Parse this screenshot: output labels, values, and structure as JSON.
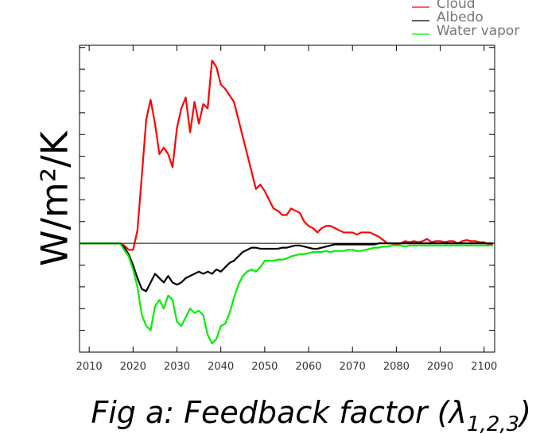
{
  "chart_data": {
    "type": "line",
    "y_label": "W/m²/K",
    "caption": "Fig a: Feedback factor (λ",
    "caption_subscript": "1,2,3",
    "caption_close": ")",
    "x": [
      2008,
      2009,
      2010,
      2011,
      2012,
      2013,
      2014,
      2015,
      2016,
      2017,
      2018,
      2019,
      2020,
      2021,
      2022,
      2023,
      2024,
      2025,
      2026,
      2027,
      2028,
      2029,
      2030,
      2031,
      2032,
      2033,
      2034,
      2035,
      2036,
      2037,
      2038,
      2039,
      2040,
      2041,
      2042,
      2043,
      2044,
      2045,
      2046,
      2047,
      2048,
      2049,
      2050,
      2051,
      2052,
      2053,
      2054,
      2055,
      2056,
      2057,
      2058,
      2059,
      2060,
      2061,
      2062,
      2063,
      2064,
      2065,
      2066,
      2067,
      2068,
      2069,
      2070,
      2071,
      2072,
      2073,
      2074,
      2075,
      2076,
      2077,
      2078,
      2079,
      2080,
      2081,
      2082,
      2083,
      2084,
      2085,
      2086,
      2087,
      2088,
      2089,
      2090,
      2091,
      2092,
      2093,
      2094,
      2095,
      2096,
      2097,
      2098,
      2099,
      2100,
      2101,
      2102
    ],
    "series": [
      {
        "name": "Cloud",
        "color": "#ff0000",
        "values": [
          0,
          0,
          0,
          0,
          0,
          0,
          0,
          0,
          0,
          0,
          -0.1,
          -0.3,
          -0.3,
          0.6,
          3.1,
          5.7,
          6.6,
          5.5,
          4.1,
          4.4,
          4.1,
          3.5,
          5.3,
          6.2,
          6.7,
          5.1,
          6.5,
          5.5,
          6.4,
          6.2,
          8.4,
          8.1,
          7.3,
          7.1,
          6.8,
          6.5,
          5.7,
          4.9,
          4.1,
          3.3,
          2.5,
          2.7,
          2.4,
          2.0,
          1.6,
          1.5,
          1.3,
          1.3,
          1.6,
          1.5,
          1.4,
          1.0,
          0.8,
          0.7,
          0.5,
          0.7,
          0.8,
          0.8,
          0.7,
          0.6,
          0.5,
          0.5,
          0.5,
          0.4,
          0.5,
          0.5,
          0.5,
          0.4,
          0.3,
          0.15,
          0,
          0,
          -0.05,
          0,
          0.1,
          0.05,
          0.1,
          0.05,
          0.1,
          0.2,
          0.05,
          0.1,
          0.1,
          0.05,
          0.1,
          0.1,
          0,
          0.1,
          0.15,
          0.1,
          0.1,
          0.05,
          0.05,
          -0.05,
          -0.05
        ]
      },
      {
        "name": "Albedo",
        "color": "#000000",
        "values": [
          0,
          0,
          0,
          0,
          0,
          0,
          0,
          0,
          0,
          0,
          -0.2,
          -0.5,
          -1.0,
          -1.6,
          -2.1,
          -2.2,
          -1.8,
          -1.4,
          -1.6,
          -1.8,
          -1.5,
          -1.8,
          -1.9,
          -1.8,
          -1.6,
          -1.5,
          -1.4,
          -1.3,
          -1.4,
          -1.3,
          -1.4,
          -1.2,
          -1.3,
          -1.1,
          -0.9,
          -0.8,
          -0.6,
          -0.4,
          -0.3,
          -0.2,
          -0.2,
          -0.25,
          -0.25,
          -0.25,
          -0.25,
          -0.25,
          -0.2,
          -0.2,
          -0.15,
          -0.1,
          -0.1,
          -0.15,
          -0.2,
          -0.25,
          -0.25,
          -0.2,
          -0.15,
          -0.1,
          -0.05,
          -0.05,
          -0.05,
          -0.05,
          -0.05,
          -0.05,
          -0.05,
          -0.05,
          -0.05,
          -0.05,
          0,
          0,
          0,
          0,
          0,
          0,
          0,
          0,
          0,
          0,
          0,
          0,
          0,
          0,
          0,
          0,
          0,
          0,
          0,
          0,
          0,
          0,
          0,
          0,
          0,
          0,
          0
        ]
      },
      {
        "name": "Water vapor",
        "color": "#00ee00",
        "values": [
          0,
          0,
          0,
          0,
          0,
          0,
          0,
          0,
          0,
          0,
          -0.3,
          -0.6,
          -1.2,
          -2.0,
          -3.3,
          -3.8,
          -4.0,
          -2.9,
          -2.6,
          -3.0,
          -2.4,
          -2.6,
          -3.6,
          -3.8,
          -3.4,
          -3.0,
          -3.2,
          -3.1,
          -3.3,
          -4.2,
          -4.6,
          -4.4,
          -3.8,
          -3.7,
          -3.2,
          -2.5,
          -1.9,
          -1.5,
          -1.3,
          -1.2,
          -1.3,
          -1.1,
          -0.8,
          -0.8,
          -0.8,
          -0.75,
          -0.75,
          -0.7,
          -0.6,
          -0.55,
          -0.5,
          -0.5,
          -0.45,
          -0.4,
          -0.4,
          -0.4,
          -0.35,
          -0.4,
          -0.35,
          -0.35,
          -0.35,
          -0.3,
          -0.3,
          -0.35,
          -0.35,
          -0.3,
          -0.25,
          -0.2,
          -0.2,
          -0.15,
          -0.15,
          -0.1,
          -0.1,
          -0.1,
          -0.15,
          -0.1,
          -0.1,
          -0.1,
          -0.1,
          -0.1,
          -0.1,
          -0.1,
          -0.1,
          -0.1,
          -0.1,
          -0.1,
          -0.1,
          -0.1,
          -0.1,
          -0.1,
          -0.1,
          -0.1,
          -0.1,
          -0.1,
          -0.1
        ]
      }
    ],
    "xlim": [
      2007.8,
      2102.4
    ],
    "xticks": [
      2010,
      2020,
      2030,
      2040,
      2050,
      2060,
      2070,
      2080,
      2090,
      2100
    ],
    "ylim": [
      -5,
      9.1
    ],
    "yticks": [
      -5,
      -4,
      -3,
      -2,
      -1,
      0,
      1,
      2,
      3,
      4,
      5,
      6,
      7,
      8,
      9
    ],
    "legend": "top-right"
  }
}
